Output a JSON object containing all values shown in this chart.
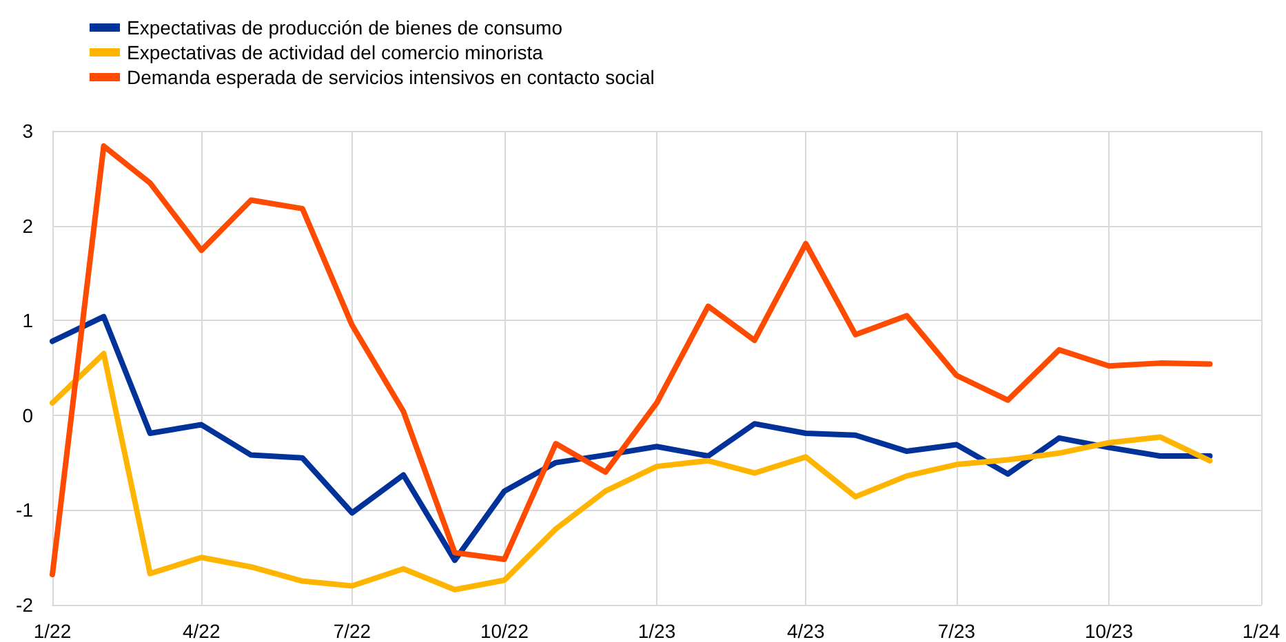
{
  "chart_data": {
    "type": "line",
    "x": [
      "2022-01",
      "2022-02",
      "2022-03",
      "2022-04",
      "2022-05",
      "2022-06",
      "2022-07",
      "2022-08",
      "2022-09",
      "2022-10",
      "2022-11",
      "2022-12",
      "2023-01",
      "2023-02",
      "2023-03",
      "2023-04",
      "2023-05",
      "2023-06",
      "2023-07",
      "2023-08",
      "2023-09",
      "2023-10",
      "2023-11",
      "2023-12"
    ],
    "series": [
      {
        "name": "Expectativas de producción de bienes de consumo",
        "color": "#003299",
        "values": [
          0.78,
          1.04,
          -0.19,
          -0.1,
          -0.42,
          -0.45,
          -1.03,
          -0.63,
          -1.53,
          -0.8,
          -0.5,
          -0.42,
          -0.33,
          -0.43,
          -0.09,
          -0.19,
          -0.21,
          -0.38,
          -0.31,
          -0.62,
          -0.24,
          -0.34,
          -0.43,
          -0.43
        ]
      },
      {
        "name": "Expectativas de actividad del comercio minorista",
        "color": "#ffb400",
        "values": [
          0.13,
          0.65,
          -1.67,
          -1.5,
          -1.6,
          -1.75,
          -1.8,
          -1.62,
          -1.84,
          -1.74,
          -1.2,
          -0.8,
          -0.54,
          -0.48,
          -0.61,
          -0.44,
          -0.86,
          -0.64,
          -0.52,
          -0.47,
          -0.4,
          -0.29,
          -0.23,
          -0.48
        ]
      },
      {
        "name": "Demanda esperada de servicios intensivos en contacto social",
        "color": "#ff4b00",
        "values": [
          -1.68,
          2.84,
          2.45,
          1.74,
          2.27,
          2.18,
          0.95,
          0.04,
          -1.45,
          -1.52,
          -0.3,
          -0.6,
          0.13,
          1.15,
          0.79,
          1.81,
          0.85,
          1.05,
          0.42,
          0.16,
          0.69,
          0.52,
          0.55,
          0.54
        ]
      }
    ],
    "xlim": [
      "2022-01",
      "2024-01"
    ],
    "xticks": [
      {
        "value": "2022-01",
        "label": "1/22"
      },
      {
        "value": "2022-04",
        "label": "4/22"
      },
      {
        "value": "2022-07",
        "label": "7/22"
      },
      {
        "value": "2022-10",
        "label": "10/22"
      },
      {
        "value": "2023-01",
        "label": "1/23"
      },
      {
        "value": "2023-04",
        "label": "4/23"
      },
      {
        "value": "2023-07",
        "label": "7/23"
      },
      {
        "value": "2023-10",
        "label": "10/23"
      },
      {
        "value": "2024-01",
        "label": "1/24"
      }
    ],
    "ylim": [
      -2,
      3
    ],
    "yticks": [
      -2,
      -1,
      0,
      1,
      2,
      3
    ],
    "grid": true,
    "legend": "top left",
    "marker": "none",
    "line_style": "solid"
  }
}
